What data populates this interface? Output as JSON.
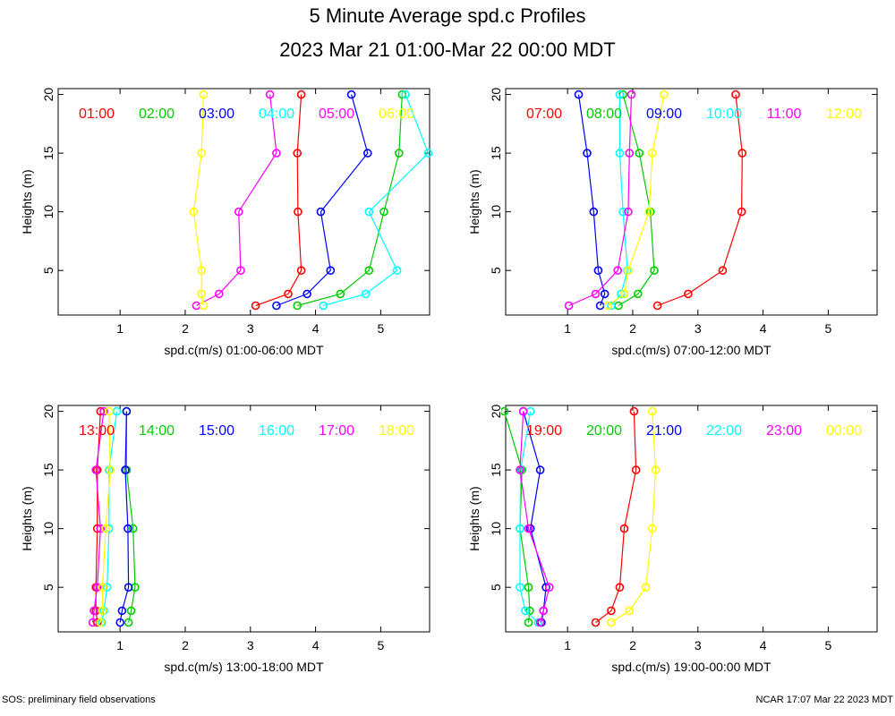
{
  "title": "5 Minute Average spd.c Profiles",
  "subtitle": "2023 Mar 21 01:00-Mar 22 00:00 MDT",
  "footer_left": "SOS: preliminary field observations",
  "footer_right": "NCAR 17:07 Mar 22 2023 MDT",
  "colors": [
    "#ff0000",
    "#00cc00",
    "#0000ff",
    "#00ffff",
    "#ff00ff",
    "#ffff00"
  ],
  "chart_data": [
    {
      "type": "line",
      "xlabel": "spd.c(m/s) 01:00-06:00 MDT",
      "ylabel": "Heights (m)",
      "xlim": [
        0.05,
        5.75
      ],
      "ylim": [
        1.2,
        20.5
      ],
      "xticks": [
        1,
        2,
        3,
        4,
        5
      ],
      "yticks": [
        5,
        10,
        15,
        20
      ],
      "heights": [
        2,
        3,
        5,
        10,
        15,
        20
      ],
      "series": [
        {
          "name": "01:00",
          "values": [
            3.08,
            3.58,
            3.78,
            3.73,
            3.72,
            3.78
          ]
        },
        {
          "name": "02:00",
          "values": [
            3.72,
            4.38,
            4.82,
            5.05,
            5.28,
            5.33
          ]
        },
        {
          "name": "03:00",
          "values": [
            3.4,
            3.87,
            4.23,
            4.08,
            4.8,
            4.55
          ]
        },
        {
          "name": "04:00",
          "values": [
            4.12,
            4.77,
            5.25,
            4.82,
            5.73,
            5.38
          ]
        },
        {
          "name": "05:00",
          "values": [
            2.17,
            2.52,
            2.85,
            2.82,
            3.4,
            3.3
          ]
        },
        {
          "name": "06:00",
          "values": [
            2.28,
            2.25,
            2.25,
            2.13,
            2.25,
            2.28
          ]
        }
      ]
    },
    {
      "type": "line",
      "xlabel": "spd.c(m/s) 07:00-12:00 MDT",
      "ylabel": "Heights (m)",
      "xlim": [
        0.05,
        5.75
      ],
      "ylim": [
        1.2,
        20.5
      ],
      "xticks": [
        1,
        2,
        3,
        4,
        5
      ],
      "yticks": [
        5,
        10,
        15,
        20
      ],
      "heights": [
        2,
        3,
        5,
        10,
        15,
        20
      ],
      "series": [
        {
          "name": "07:00",
          "values": [
            2.38,
            2.85,
            3.38,
            3.67,
            3.68,
            3.58
          ]
        },
        {
          "name": "08:00",
          "values": [
            1.78,
            2.08,
            2.33,
            2.27,
            2.1,
            1.85
          ]
        },
        {
          "name": "09:00",
          "values": [
            1.5,
            1.57,
            1.47,
            1.4,
            1.3,
            1.17
          ]
        },
        {
          "name": "10:00",
          "values": [
            1.67,
            1.82,
            1.92,
            1.85,
            1.8,
            1.8
          ]
        },
        {
          "name": "11:00",
          "values": [
            1.02,
            1.43,
            1.77,
            1.93,
            1.95,
            1.98
          ]
        },
        {
          "name": "12:00",
          "values": [
            1.62,
            1.87,
            1.93,
            2.25,
            2.3,
            2.48
          ]
        }
      ]
    },
    {
      "type": "line",
      "xlabel": "spd.c(m/s) 13:00-18:00 MDT",
      "ylabel": "Heights (m)",
      "xlim": [
        0.05,
        5.75
      ],
      "ylim": [
        1.2,
        20.5
      ],
      "xticks": [
        1,
        2,
        3,
        4,
        5
      ],
      "yticks": [
        5,
        10,
        15,
        20
      ],
      "heights": [
        2,
        3,
        5,
        10,
        15,
        20
      ],
      "series": [
        {
          "name": "13:00",
          "values": [
            0.65,
            0.63,
            0.63,
            0.65,
            0.65,
            0.7
          ]
        },
        {
          "name": "14:00",
          "values": [
            1.13,
            1.17,
            1.23,
            1.2,
            1.1,
            1.1
          ]
        },
        {
          "name": "15:00",
          "values": [
            1.0,
            1.03,
            1.13,
            1.12,
            1.08,
            1.1
          ]
        },
        {
          "name": "16:00",
          "values": [
            0.72,
            0.75,
            0.8,
            0.83,
            0.83,
            0.95
          ]
        },
        {
          "name": "17:00",
          "values": [
            0.58,
            0.6,
            0.65,
            0.7,
            0.63,
            0.75
          ]
        },
        {
          "name": "18:00",
          "values": [
            0.7,
            0.73,
            0.73,
            0.78,
            0.85,
            0.83
          ]
        }
      ]
    },
    {
      "type": "line",
      "xlabel": "spd.c(m/s) 19:00-00:00 MDT",
      "ylabel": "Heights (m)",
      "xlim": [
        0.05,
        5.75
      ],
      "ylim": [
        1.2,
        20.5
      ],
      "xticks": [
        1,
        2,
        3,
        4,
        5
      ],
      "yticks": [
        5,
        10,
        15,
        20
      ],
      "heights": [
        2,
        3,
        5,
        10,
        15,
        20
      ],
      "series": [
        {
          "name": "19:00",
          "values": [
            1.43,
            1.67,
            1.8,
            1.87,
            2.05,
            2.02
          ]
        },
        {
          "name": "20:00",
          "values": [
            0.4,
            0.42,
            0.4,
            0.27,
            0.3,
            0.03
          ]
        },
        {
          "name": "21:00",
          "values": [
            0.6,
            0.63,
            0.67,
            0.43,
            0.58,
            0.32
          ]
        },
        {
          "name": "22:00",
          "values": [
            0.55,
            0.35,
            0.27,
            0.27,
            0.28,
            0.43
          ]
        },
        {
          "name": "23:00",
          "values": [
            0.58,
            0.63,
            0.72,
            0.4,
            0.27,
            0.32
          ]
        },
        {
          "name": "00:00",
          "values": [
            1.67,
            1.95,
            2.2,
            2.3,
            2.35,
            2.3
          ]
        }
      ]
    }
  ]
}
